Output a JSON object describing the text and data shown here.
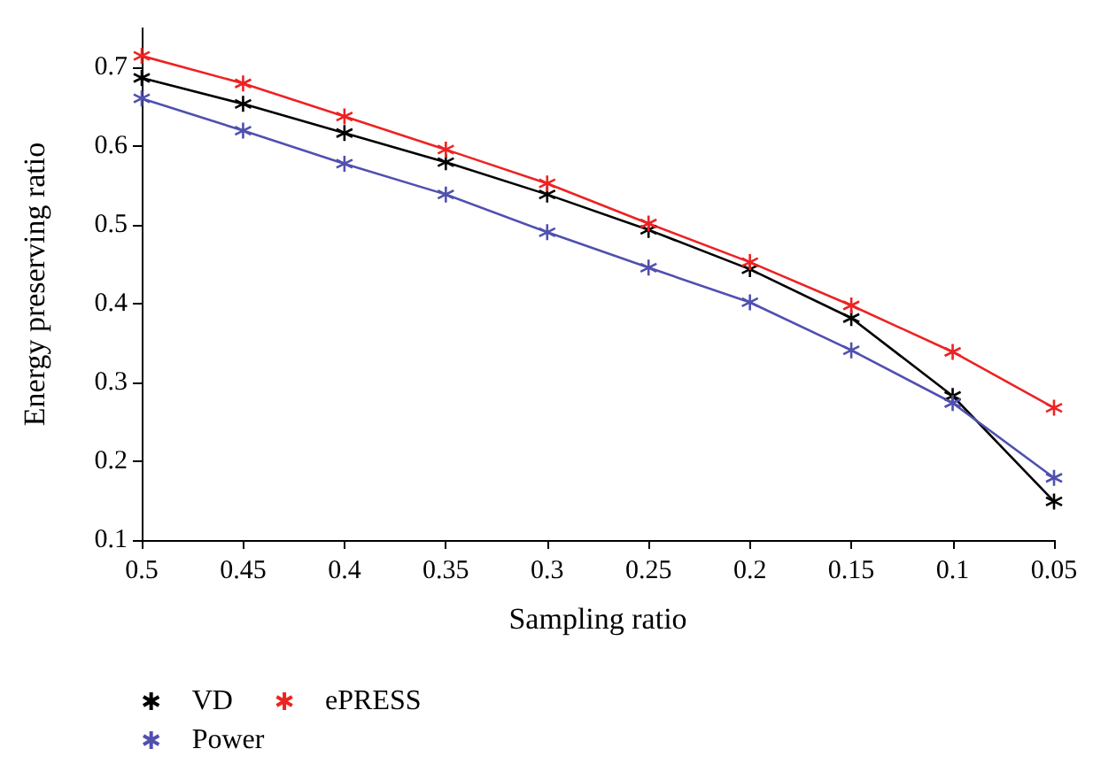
{
  "chart_data": {
    "type": "line",
    "xlabel": "Sampling ratio",
    "ylabel": "Energy preserving ratio",
    "x": [
      0.5,
      0.45,
      0.4,
      0.35,
      0.3,
      0.25,
      0.2,
      0.15,
      0.1,
      0.05
    ],
    "xlim": [
      0.5,
      0.05
    ],
    "xticks": [
      0.5,
      0.45,
      0.4,
      0.35,
      0.3,
      0.25,
      0.2,
      0.15,
      0.1,
      0.05
    ],
    "ylim": [
      0.1,
      0.75
    ],
    "yticks": [
      0.1,
      0.2,
      0.3,
      0.4,
      0.5,
      0.6,
      0.7
    ],
    "grid": false,
    "legend": "bottom",
    "marker": "cross",
    "line_style": "solid",
    "series": [
      {
        "name": "VD",
        "color": "#000000",
        "values": [
          0.687,
          0.654,
          0.617,
          0.58,
          0.539,
          0.494,
          0.444,
          0.382,
          0.283,
          0.149
        ]
      },
      {
        "name": "Power",
        "color": "#5050b0",
        "values": [
          0.661,
          0.62,
          0.578,
          0.539,
          0.491,
          0.446,
          0.402,
          0.341,
          0.274,
          0.179
        ]
      },
      {
        "name": "ePRESS",
        "color": "#ee2222",
        "values": [
          0.715,
          0.68,
          0.638,
          0.596,
          0.553,
          0.502,
          0.453,
          0.398,
          0.339,
          0.268
        ]
      }
    ]
  }
}
